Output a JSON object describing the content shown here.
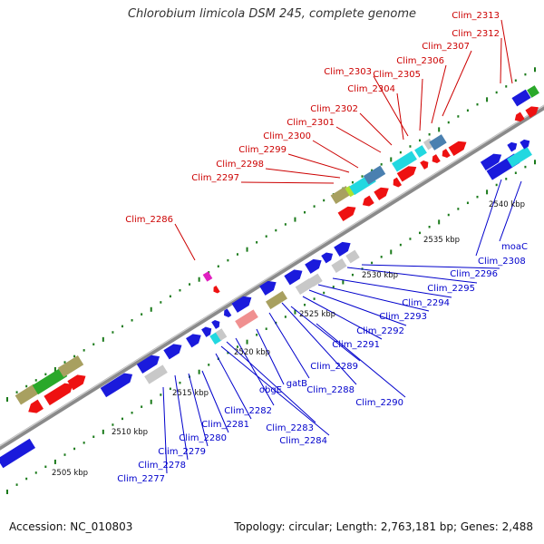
{
  "title": "Chlorobium limicola DSM 245, complete genome",
  "footer": {
    "accession": "Accession: NC_010803",
    "summary": "Topology: circular; Length: 2,763,181 bp; Genes: 2,488"
  },
  "colors": {
    "upper_label": "#cc0000",
    "lower_label": "#0000cc",
    "backbone": "#8a8a8a",
    "tick": "#1a7a1a",
    "blue": "#1a1adc",
    "red": "#ee1111",
    "cyan": "#22d8e0",
    "green": "#2aa82a",
    "olive": "#a8a060",
    "grey": "#c8c8c8",
    "pink": "#f09090"
  },
  "kbp_labels": [
    "2505 kbp",
    "2510 kbp",
    "2515 kbp",
    "2520 kbp",
    "2525 kbp",
    "2530 kbp",
    "2535 kbp",
    "2540 kbp"
  ],
  "upper_labels": [
    "Clim_2313",
    "Clim_2312",
    "Clim_2307",
    "Clim_2306",
    "Clim_2305",
    "Clim_2303",
    "Clim_2304",
    "Clim_2302",
    "Clim_2301",
    "Clim_2300",
    "Clim_2299",
    "Clim_2298",
    "Clim_2297",
    "Clim_2286"
  ],
  "lower_labels": [
    "moaC",
    "Clim_2308",
    "Clim_2296",
    "Clim_2295",
    "Clim_2294",
    "Clim_2293",
    "Clim_2292",
    "Clim_2291",
    "Clim_2289",
    "Clim_2288",
    "Clim_2290",
    "gatB",
    "obgE",
    "Clim_2282",
    "Clim_2283",
    "Clim_2284",
    "Clim_2281",
    "Clim_2280",
    "Clim_2279",
    "Clim_2278",
    "Clim_2277"
  ]
}
